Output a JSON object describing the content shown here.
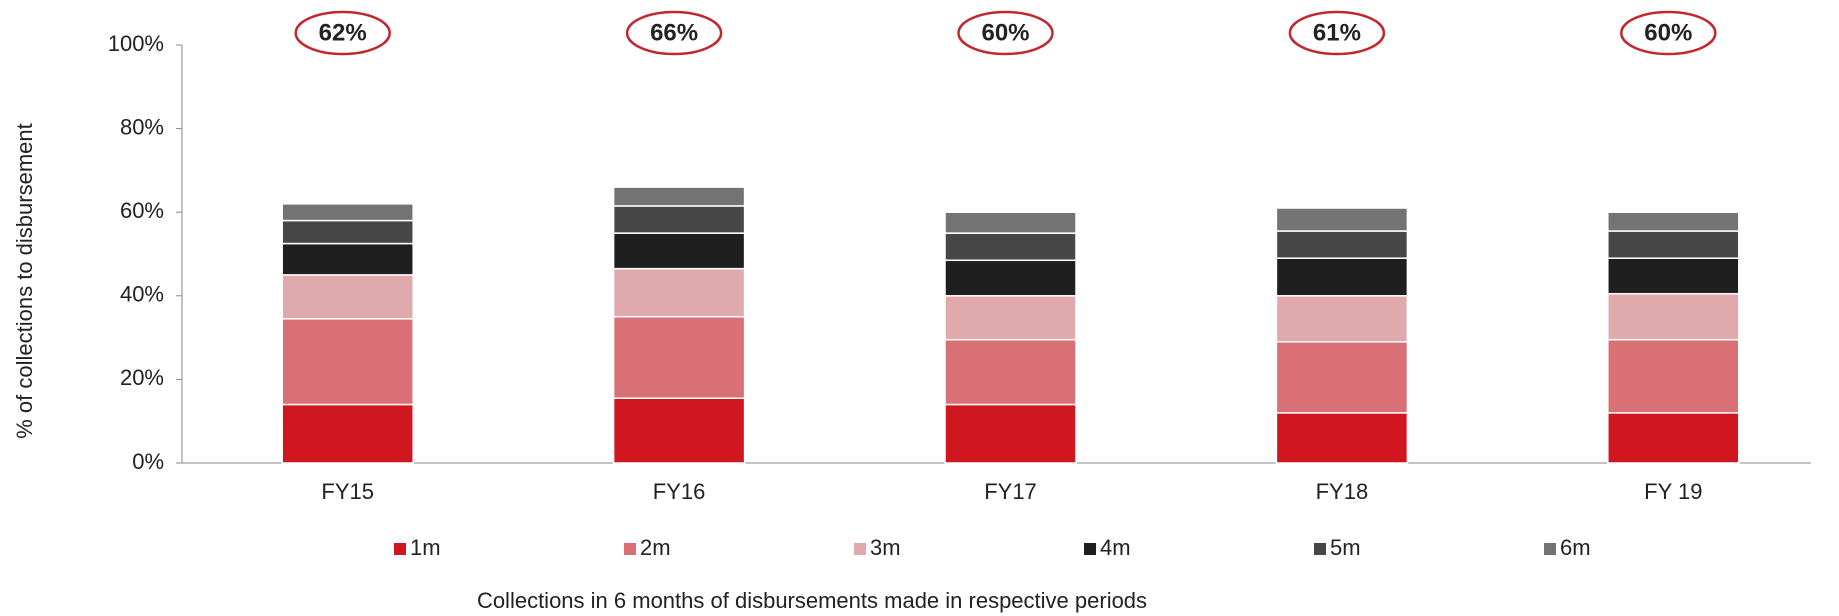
{
  "chart_data": {
    "type": "stacked_bar",
    "y_label": "% of collections to disbursement",
    "x_label": "Collections in 6 months of disbursements  made in respective periods",
    "categories": [
      "FY15",
      "FY16",
      "FY17",
      "FY18",
      "FY 19"
    ],
    "series": [
      {
        "name": "1m",
        "color": "#d0161e",
        "values": [
          14,
          15.5,
          14,
          12,
          12
        ]
      },
      {
        "name": "2m",
        "color": "#d97075",
        "values": [
          20.5,
          19.5,
          15.5,
          17,
          17.5
        ]
      },
      {
        "name": "3m",
        "color": "#e0aaac",
        "values": [
          10.5,
          11.5,
          10.5,
          11,
          11
        ]
      },
      {
        "name": "4m",
        "color": "#1f1f1f",
        "values": [
          7.5,
          8.5,
          8.5,
          9,
          8.5
        ]
      },
      {
        "name": "5m",
        "color": "#474747",
        "values": [
          5.5,
          6.5,
          6.5,
          6.5,
          6.5
        ]
      },
      {
        "name": "6m",
        "color": "#737373",
        "values": [
          4,
          4.5,
          5,
          5.5,
          4.5
        ]
      }
    ],
    "annotations": [
      "62%",
      "66%",
      "60%",
      "61%",
      "60%"
    ],
    "ylim": [
      0,
      100
    ],
    "yticks": [
      {
        "value": 0,
        "label": "0%"
      },
      {
        "value": 20,
        "label": "20%"
      },
      {
        "value": 40,
        "label": "40%"
      },
      {
        "value": 60,
        "label": "60%"
      },
      {
        "value": 80,
        "label": "80%"
      },
      {
        "value": 100,
        "label": "100%"
      }
    ],
    "grid": false,
    "legend": "bottom"
  }
}
